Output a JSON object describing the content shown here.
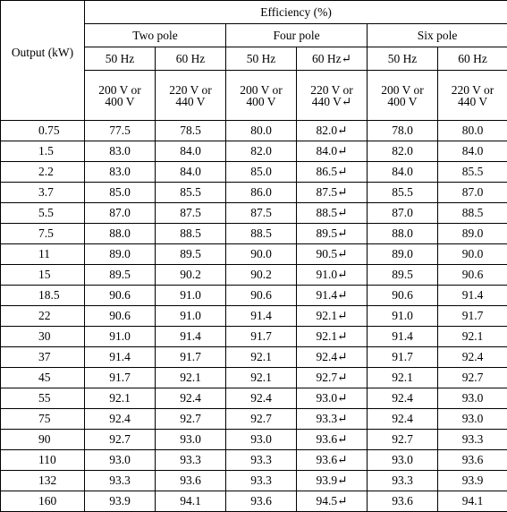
{
  "table": {
    "output_header": "Output (kW)",
    "efficiency_header": "Efficiency (%)",
    "groups": [
      "Two pole",
      "Four pole",
      "Six pole"
    ],
    "frequencies": [
      "50 Hz",
      "60 Hz",
      "50 Hz",
      "60 Hz↵",
      "50 Hz",
      "60 Hz"
    ],
    "voltages": [
      [
        "200 V or",
        "400 V"
      ],
      [
        "220 V or",
        "440 V"
      ],
      [
        "200 V or",
        "400 V"
      ],
      [
        "220 V or",
        "440 V↵"
      ],
      [
        "200 V or",
        "400 V"
      ],
      [
        "220 V or",
        "440 V"
      ]
    ],
    "rows": [
      {
        "output": "0.75",
        "values": [
          "77.5",
          "78.5",
          "80.0",
          "82.0↵",
          "78.0",
          "80.0"
        ]
      },
      {
        "output": "1.5",
        "values": [
          "83.0",
          "84.0",
          "82.0",
          "84.0↵",
          "82.0",
          "84.0"
        ]
      },
      {
        "output": "2.2",
        "values": [
          "83.0",
          "84.0",
          "85.0",
          "86.5↵",
          "84.0",
          "85.5"
        ]
      },
      {
        "output": "3.7",
        "values": [
          "85.0",
          "85.5",
          "86.0",
          "87.5↵",
          "85.5",
          "87.0"
        ]
      },
      {
        "output": "5.5",
        "values": [
          "87.0",
          "87.5",
          "87.5",
          "88.5↵",
          "87.0",
          "88.5"
        ]
      },
      {
        "output": "7.5",
        "values": [
          "88.0",
          "88.5",
          "88.5",
          "89.5↵",
          "88.0",
          "89.0"
        ]
      },
      {
        "output": "11",
        "values": [
          "89.0",
          "89.5",
          "90.0",
          "90.5↵",
          "89.0",
          "90.0"
        ]
      },
      {
        "output": "15",
        "values": [
          "89.5",
          "90.2",
          "90.2",
          "91.0↵",
          "89.5",
          "90.6"
        ]
      },
      {
        "output": "18.5",
        "values": [
          "90.6",
          "91.0",
          "90.6",
          "91.4↵",
          "90.6",
          "91.4"
        ]
      },
      {
        "output": "22",
        "values": [
          "90.6",
          "91.0",
          "91.4",
          "92.1↵",
          "91.0",
          "91.7"
        ]
      },
      {
        "output": "30",
        "values": [
          "91.0",
          "91.4",
          "91.7",
          "92.1↵",
          "91.4",
          "92.1"
        ]
      },
      {
        "output": "37",
        "values": [
          "91.4",
          "91.7",
          "92.1",
          "92.4↵",
          "91.7",
          "92.4"
        ]
      },
      {
        "output": "45",
        "values": [
          "91.7",
          "92.1",
          "92.1",
          "92.7↵",
          "92.1",
          "92.7"
        ]
      },
      {
        "output": "55",
        "values": [
          "92.1",
          "92.4",
          "92.4",
          "93.0↵",
          "92.4",
          "93.0"
        ]
      },
      {
        "output": "75",
        "values": [
          "92.4",
          "92.7",
          "92.7",
          "93.3↵",
          "92.4",
          "93.0"
        ]
      },
      {
        "output": "90",
        "values": [
          "92.7",
          "93.0",
          "93.0",
          "93.6↵",
          "92.7",
          "93.3"
        ]
      },
      {
        "output": "110",
        "values": [
          "93.0",
          "93.3",
          "93.3",
          "93.6↵",
          "93.0",
          "93.6"
        ]
      },
      {
        "output": "132",
        "values": [
          "93.3",
          "93.6",
          "93.3",
          "93.9↵",
          "93.3",
          "93.9"
        ]
      },
      {
        "output": "160",
        "values": [
          "93.9",
          "94.1",
          "93.6",
          "94.5↵",
          "93.6",
          "94.1"
        ]
      }
    ]
  }
}
